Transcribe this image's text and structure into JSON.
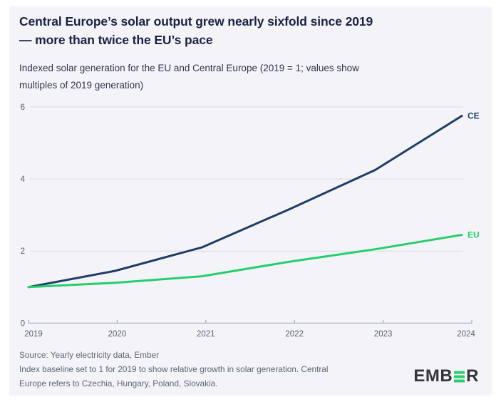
{
  "title": {
    "line1": "Central Europe’s solar output grew nearly sixfold since 2019",
    "line2": "— more than twice the EU’s pace"
  },
  "subtitle": {
    "line1": "Indexed solar generation for the EU and Central Europe (2019 = 1; values show",
    "line2": "multiples of 2019 generation)"
  },
  "chart_data": {
    "type": "line",
    "title": "Central Europe’s solar output grew nearly sixfold since 2019 — more than twice the EU’s pace",
    "subtitle": "Indexed solar generation for the EU and Central Europe (2019 = 1; values show multiples of 2019 generation)",
    "x": [
      "2019",
      "2020",
      "2021",
      "2022",
      "2023",
      "2024"
    ],
    "series": [
      {
        "name": "CE",
        "color": "#1f3e66",
        "values": [
          1.0,
          1.45,
          2.1,
          3.15,
          4.25,
          5.75
        ]
      },
      {
        "name": "EU",
        "color": "#25ce6d",
        "values": [
          1.0,
          1.12,
          1.3,
          1.7,
          2.05,
          2.45
        ]
      }
    ],
    "xlabel": "",
    "ylabel": "",
    "ylim": [
      0,
      6
    ],
    "yticks": [
      0,
      2,
      4,
      6
    ],
    "grid": "horizontal",
    "legend_position": "line-end-labels"
  },
  "footer": {
    "source": "Source: Yearly electricity data, Ember",
    "note_line1": "Index baseline set to 1 for 2019 to show relative growth in solar generation. Central",
    "note_line2": "Europe refers to Czechia, Hungary, Poland, Slovakia."
  },
  "logo": {
    "text_left": "EMB",
    "text_right": "R"
  },
  "colors": {
    "panel_bg": "#f4f4f8",
    "title_text": "#1b2140",
    "grid": "#d8dae3",
    "axis": "#a7acbd",
    "tick_text": "#565e75",
    "footer_text": "#5d6478",
    "logo_dark": "#33343c",
    "logo_green": "#2ecc71",
    "ce_line": "#1f3e66",
    "eu_line": "#25ce6d"
  }
}
